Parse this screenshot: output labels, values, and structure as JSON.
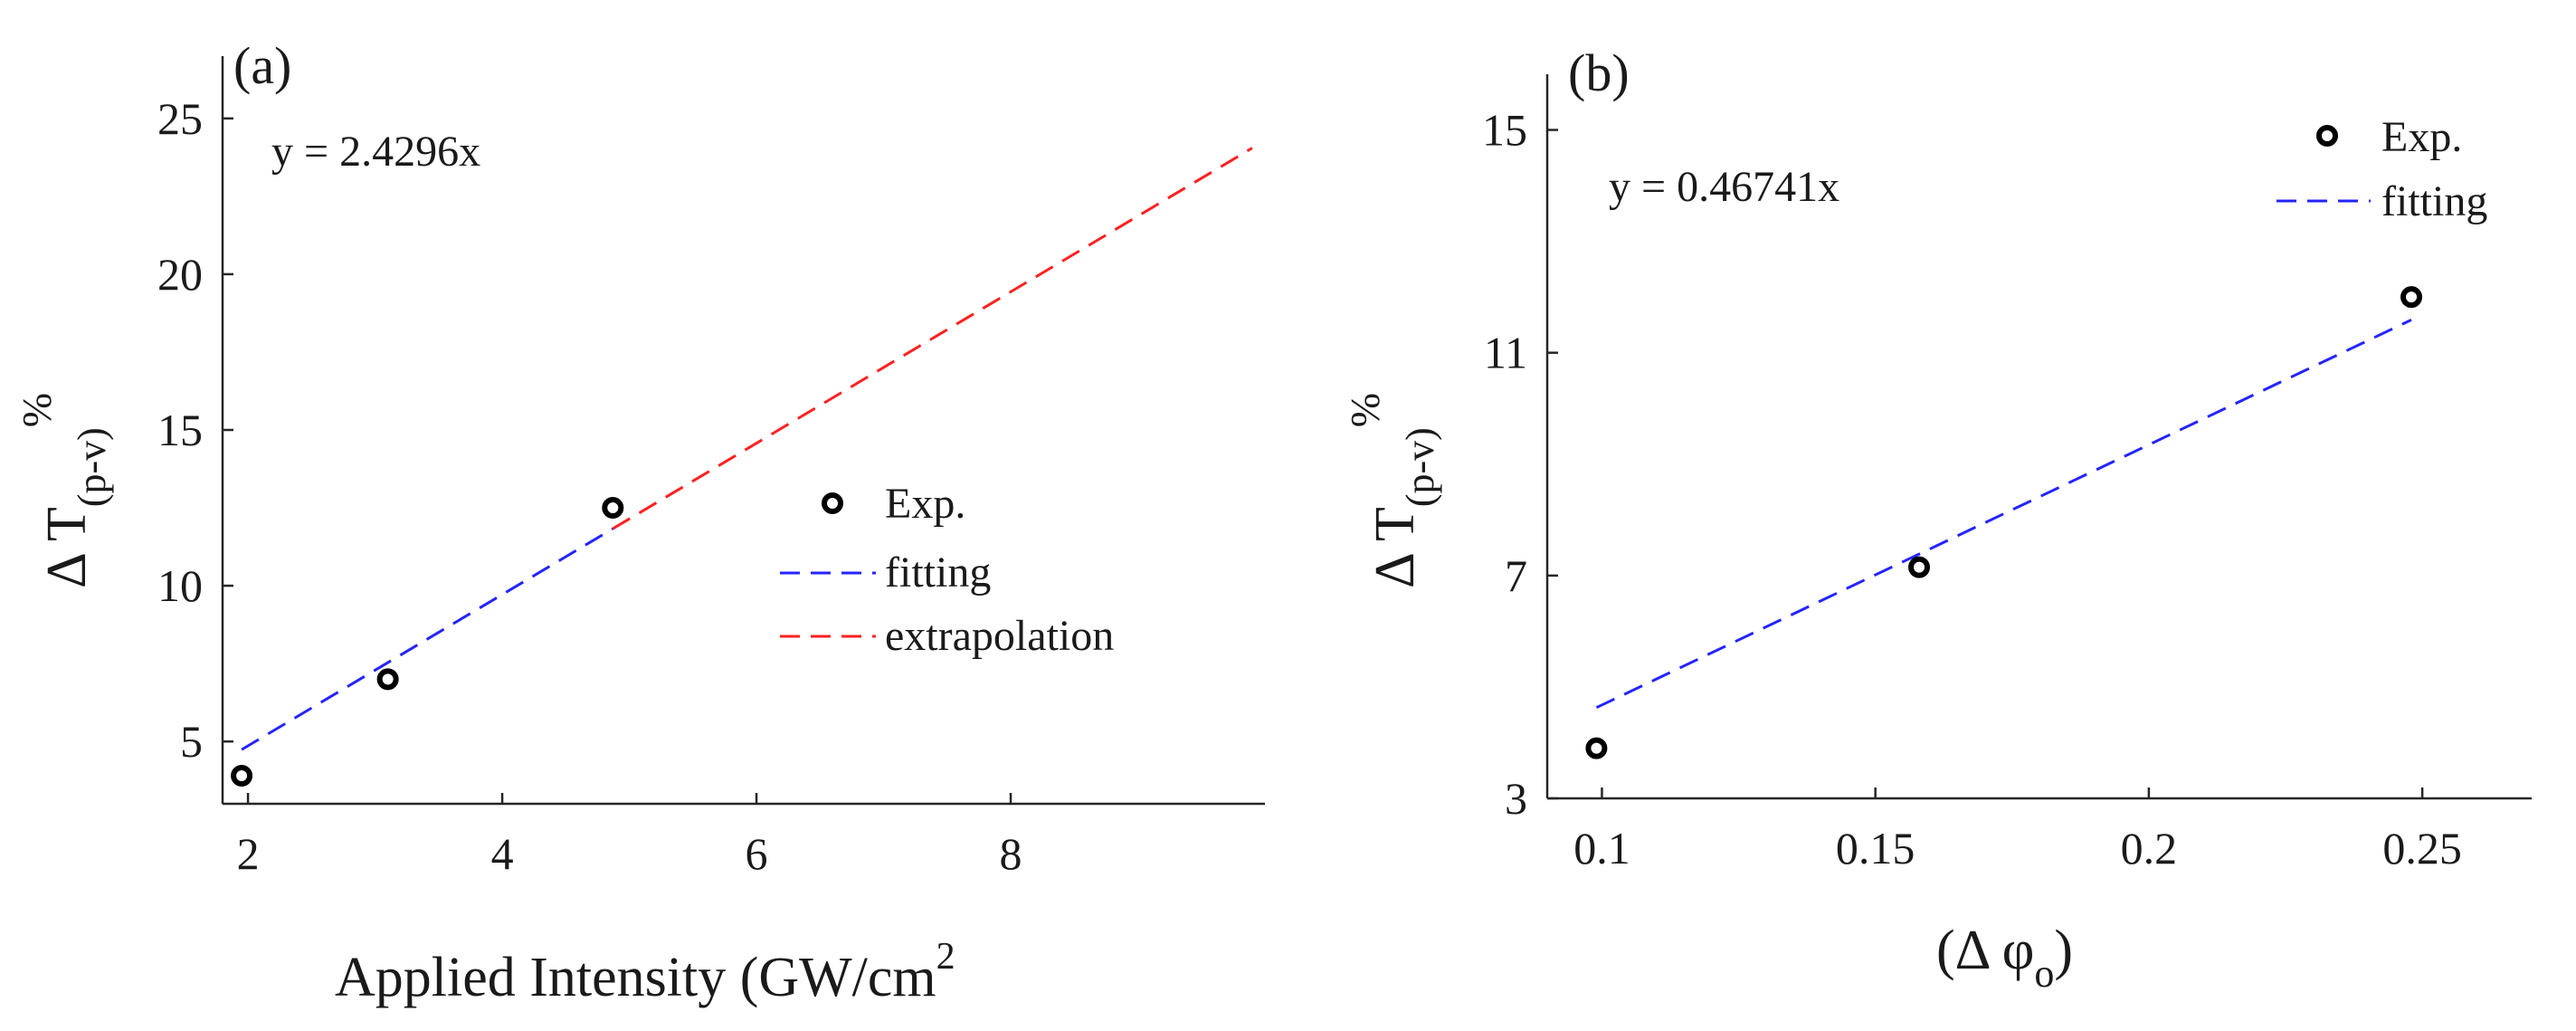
{
  "chart_data": [
    {
      "type": "scatter",
      "panel_label": "(a)",
      "equation": "y = 2.4296x",
      "xlabel": "Applied Intensity (GW/cm",
      "xlabel_sup": "2",
      "ylabel": "Δ T",
      "ylabel_sub": "(p-v)",
      "ylabel_sup": "%",
      "xlim": [
        1.8,
        10.0
      ],
      "ylim": [
        3.0,
        27.0
      ],
      "xticks": [
        2,
        4,
        6,
        8
      ],
      "xtick_labels": [
        "2",
        "4",
        "6",
        "8"
      ],
      "yticks": [
        5,
        10,
        15,
        20,
        25
      ],
      "ytick_labels": [
        "5",
        "10",
        "15",
        "20",
        "25"
      ],
      "legend_position": "right",
      "series": [
        {
          "name": "Exp.",
          "kind": "marker",
          "color": "#000000",
          "x": [
            1.95,
            3.1,
            4.87
          ],
          "y": [
            3.9,
            7.0,
            12.5
          ]
        },
        {
          "name": "fitting",
          "kind": "dashed-line",
          "color": "#2424ff",
          "x": [
            1.95,
            4.87
          ],
          "y": [
            4.74,
            11.83
          ]
        },
        {
          "name": "extrapolation",
          "kind": "dashed-line",
          "color": "#ff2020",
          "x": [
            4.87,
            9.9
          ],
          "y": [
            11.83,
            24.05
          ]
        }
      ]
    },
    {
      "type": "scatter",
      "panel_label": "(b)",
      "equation": "y = 0.46741x",
      "xlabel": "(Δ φ",
      "xlabel_sub": "o",
      "xlabel_end": ")",
      "ylabel": "Δ T",
      "ylabel_sub": "(p-v)",
      "ylabel_sup": "%",
      "xlim": [
        0.09,
        0.27
      ],
      "ylim": [
        3.0,
        16.0
      ],
      "xticks": [
        0.1,
        0.15,
        0.2,
        0.25
      ],
      "xtick_labels": [
        "0.1",
        "0.15",
        "0.2",
        "0.25"
      ],
      "yticks": [
        3,
        7,
        11,
        15
      ],
      "ytick_labels": [
        "3",
        "7",
        "11",
        "15"
      ],
      "legend_position": "top-right",
      "series": [
        {
          "name": "Exp.",
          "kind": "marker",
          "color": "#000000",
          "x": [
            0.099,
            0.158,
            0.248
          ],
          "y": [
            3.9,
            7.15,
            12.0
          ]
        },
        {
          "name": "fitting",
          "kind": "dashed-line",
          "color": "#2424ff",
          "x": [
            0.099,
            0.248
          ],
          "y": [
            4.63,
            11.59
          ]
        }
      ]
    }
  ]
}
